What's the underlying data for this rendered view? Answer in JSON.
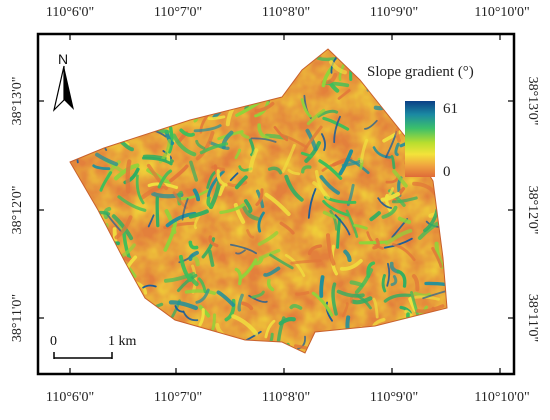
{
  "figure": {
    "top_ticks": [
      "110°6'0\"",
      "110°7'0\"",
      "110°8'0\"",
      "110°9'0\"",
      "110°10'0\""
    ],
    "bottom_ticks": [
      "110°6'0\"",
      "110°7'0\"",
      "110°8'0\"",
      "110°9'0\"",
      "110°10'0\""
    ],
    "left_ticks": [
      "38°13'0\"",
      "38°12'0\"",
      "38°11'0\""
    ],
    "right_ticks": [
      "38°13'0\"",
      "38°12'0\"",
      "38°11'0\""
    ]
  },
  "legend": {
    "title": "Slope gradient (°)",
    "max_label": "61",
    "min_label": "0",
    "gradient_colors": [
      "#0a4a8a",
      "#1f8fa0",
      "#3cc36a",
      "#b8e030",
      "#f4e23a",
      "#f0a040",
      "#e0703a"
    ]
  },
  "north_arrow": {
    "label": "N"
  },
  "scale_bar": {
    "start_label": "0",
    "end_label": "1 km"
  },
  "colors": {
    "frame": "#000000",
    "terrain_low": "#e07a3c",
    "terrain_mid": "#f2dd3a",
    "terrain_green": "#3cbf5a",
    "terrain_high": "#1a5c9a"
  }
}
